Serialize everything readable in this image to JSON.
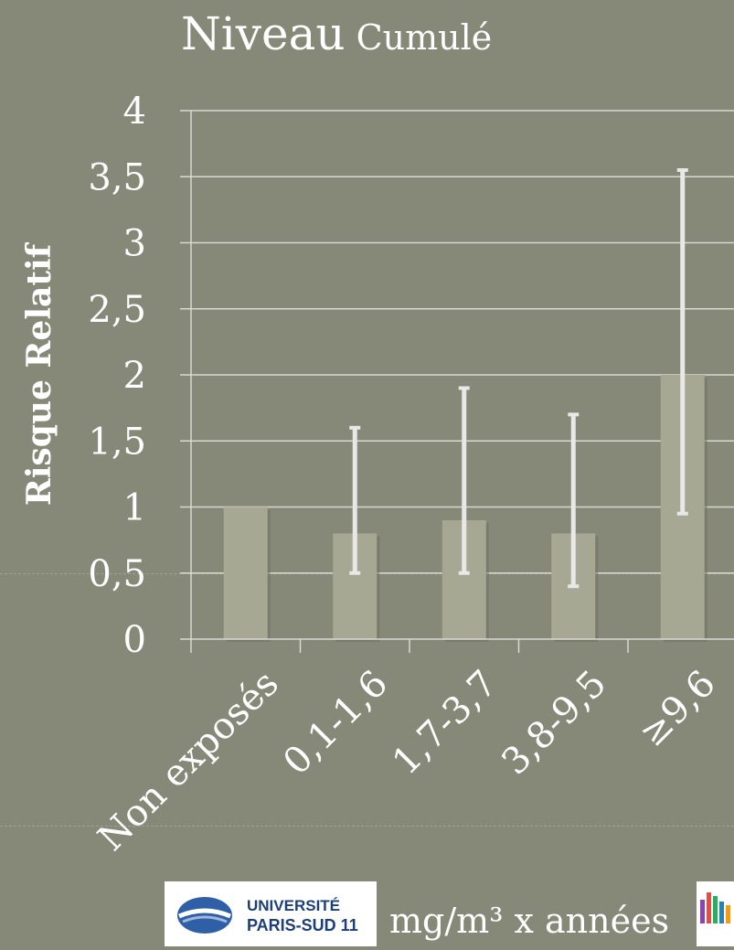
{
  "title": {
    "line1": "Niveau",
    "line2": "Cumulé"
  },
  "colors": {
    "background": "#868878",
    "bar": "#a6a893",
    "error_bar": "#e8e8e8",
    "grid": "#d9d9d0",
    "text": "#ffffff"
  },
  "chart_data": {
    "type": "bar",
    "title": "Niveau Cumulé",
    "ylabel": "Risque Relatif",
    "xlabel": "mg/m³ x années",
    "categories": [
      "Non exposés",
      "0,1-1,6",
      "1,7-3,7",
      "3,8-9,5",
      "≥9,6"
    ],
    "values": [
      1.0,
      0.8,
      0.9,
      0.8,
      2.0
    ],
    "error_low": [
      null,
      0.5,
      0.5,
      0.4,
      0.95
    ],
    "error_high": [
      null,
      1.6,
      1.9,
      1.7,
      3.55
    ],
    "ylim": [
      0,
      4
    ],
    "yticks": [
      0,
      0.5,
      1,
      1.5,
      2,
      2.5,
      3,
      3.5,
      4
    ],
    "ytick_labels": [
      "0",
      "0,5",
      "1",
      "1,5",
      "2",
      "2,5",
      "3",
      "3,5",
      "4"
    ],
    "grid": true,
    "legend": "none"
  },
  "footer": {
    "xaxis_title": "mg/m³ x années",
    "logo_univ_line1": "UNIVERSITÉ",
    "logo_univ_line2": "PARIS-SUD 11"
  }
}
